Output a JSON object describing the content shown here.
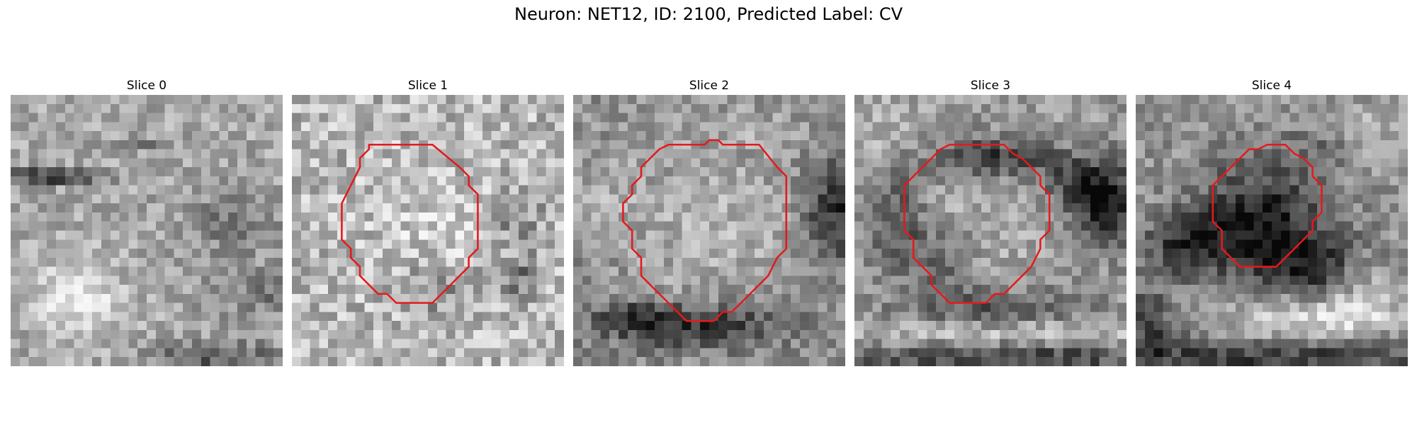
{
  "title": "Neuron: NET12, ID: 2100, Predicted Label: CV",
  "colors": {
    "contour": "#e41a1c",
    "background": "#ffffff"
  },
  "panels": [
    {
      "title": "Slice 0",
      "has_contour": false,
      "seed": 11,
      "base": 0.66,
      "blob_gain": 0.35,
      "noise": 0.3,
      "features": [
        [
          4,
          8.5,
          4,
          0.55,
          -0.55
        ],
        [
          14,
          5,
          2.2,
          0.4,
          -0.25
        ],
        [
          7,
          22,
          3.2,
          3.2,
          0.25
        ],
        [
          24,
          13.5,
          3.5,
          2.5,
          -0.18
        ],
        [
          28,
          21.5,
          4,
          2,
          -0.2
        ],
        [
          22,
          28.5,
          5,
          1.2,
          -0.32
        ]
      ],
      "contour": []
    },
    {
      "title": "Slice 1",
      "has_contour": true,
      "seed": 23,
      "base": 0.72,
      "blob_gain": 0.3,
      "noise": 0.4,
      "features": [
        [
          15,
          14,
          5,
          5,
          0.08
        ],
        [
          24,
          13,
          2,
          2,
          -0.2
        ],
        [
          16,
          21,
          3,
          2,
          -0.18
        ],
        [
          24.5,
          19.5,
          1.5,
          1.5,
          -0.3
        ]
      ],
      "contour": [
        [
          8.5,
          5.5
        ],
        [
          15.5,
          5.5
        ],
        [
          18.5,
          8.0
        ],
        [
          19.5,
          9.0
        ],
        [
          19.5,
          10.0
        ],
        [
          20.5,
          11.0
        ],
        [
          20.5,
          17.0
        ],
        [
          19.5,
          18.0
        ],
        [
          19.5,
          19.0
        ],
        [
          18.5,
          20.0
        ],
        [
          17.5,
          21.0
        ],
        [
          16.5,
          22.0
        ],
        [
          15.5,
          23.0
        ],
        [
          11.5,
          23.0
        ],
        [
          10.5,
          22.0
        ],
        [
          9.5,
          22.0
        ],
        [
          8.5,
          21.0
        ],
        [
          7.5,
          20.0
        ],
        [
          7.5,
          19.0
        ],
        [
          6.5,
          18.0
        ],
        [
          6.5,
          17.0
        ],
        [
          5.5,
          16.0
        ],
        [
          5.5,
          12.0
        ],
        [
          6.5,
          10.0
        ],
        [
          7.5,
          8.0
        ],
        [
          7.5,
          7.0
        ],
        [
          8.5,
          6.0
        ]
      ]
    },
    {
      "title": "Slice 2",
      "has_contour": true,
      "seed": 37,
      "base": 0.56,
      "blob_gain": 0.35,
      "noise": 0.3,
      "features": [
        [
          15,
          14,
          7,
          7,
          0.15
        ],
        [
          28.5,
          12.5,
          2.5,
          4,
          -0.4
        ],
        [
          13,
          25,
          7,
          1.8,
          -0.4
        ],
        [
          6,
          24,
          2.5,
          1.2,
          -0.2
        ],
        [
          3,
          10,
          2.5,
          3,
          0.1
        ],
        [
          19,
          3,
          6,
          1.3,
          0.08
        ]
      ],
      "contour": [
        [
          10.5,
          5.5
        ],
        [
          14.5,
          5.5
        ],
        [
          15.0,
          5.0
        ],
        [
          16.0,
          5.0
        ],
        [
          16.5,
          5.5
        ],
        [
          20.5,
          5.5
        ],
        [
          22.5,
          8.0
        ],
        [
          23.5,
          9.0
        ],
        [
          23.5,
          17.0
        ],
        [
          22.5,
          18.0
        ],
        [
          21.5,
          20.0
        ],
        [
          20.5,
          21.0
        ],
        [
          19.5,
          22.0
        ],
        [
          18.5,
          23.0
        ],
        [
          17.5,
          24.0
        ],
        [
          16.5,
          24.0
        ],
        [
          15.5,
          25.0
        ],
        [
          12.5,
          25.0
        ],
        [
          11.5,
          24.0
        ],
        [
          10.5,
          23.0
        ],
        [
          9.5,
          22.0
        ],
        [
          8.5,
          21.0
        ],
        [
          7.5,
          20.0
        ],
        [
          7.5,
          18.0
        ],
        [
          6.5,
          17.0
        ],
        [
          6.5,
          15.0
        ],
        [
          5.5,
          14.0
        ],
        [
          5.5,
          12.0
        ],
        [
          6.5,
          11.0
        ],
        [
          6.5,
          10.0
        ],
        [
          7.5,
          9.0
        ],
        [
          7.5,
          8.0
        ],
        [
          8.5,
          7.0
        ],
        [
          9.5,
          6.0
        ]
      ]
    },
    {
      "title": "Slice 3",
      "has_contour": true,
      "seed": 53,
      "base": 0.6,
      "blob_gain": 0.4,
      "noise": 0.3,
      "features": [
        [
          15,
          14,
          5,
          5,
          0.08
        ],
        [
          15,
          6.5,
          5,
          1.6,
          -0.38
        ],
        [
          24,
          9.5,
          2.5,
          2,
          -0.32
        ],
        [
          27.5,
          11.5,
          2.5,
          3,
          -0.48
        ],
        [
          4,
          13.5,
          2,
          3.5,
          -0.3
        ],
        [
          9,
          18,
          2.5,
          2.5,
          -0.25
        ],
        [
          15,
          23,
          7,
          1.5,
          -0.25
        ],
        [
          16,
          26,
          16,
          1,
          0.2
        ],
        [
          15,
          28.5,
          16,
          1.3,
          -0.35
        ],
        [
          2,
          3,
          4,
          3,
          0.1
        ]
      ],
      "contour": [
        [
          10.5,
          5.5
        ],
        [
          16.5,
          5.5
        ],
        [
          17.5,
          6.5
        ],
        [
          18.5,
          7.0
        ],
        [
          19.5,
          8.0
        ],
        [
          20.5,
          9.0
        ],
        [
          20.5,
          10.0
        ],
        [
          21.5,
          11.0
        ],
        [
          21.5,
          15.0
        ],
        [
          20.5,
          16.0
        ],
        [
          20.5,
          17.0
        ],
        [
          19.5,
          19.0
        ],
        [
          18.5,
          20.0
        ],
        [
          17.5,
          21.0
        ],
        [
          16.5,
          22.0
        ],
        [
          15.5,
          22.0
        ],
        [
          14.5,
          23.0
        ],
        [
          10.5,
          23.0
        ],
        [
          9.5,
          22.0
        ],
        [
          8.5,
          21.0
        ],
        [
          8.5,
          20.0
        ],
        [
          7.5,
          19.0
        ],
        [
          6.5,
          18.0
        ],
        [
          6.5,
          16.0
        ],
        [
          5.5,
          15.0
        ],
        [
          5.5,
          10.0
        ],
        [
          6.5,
          9.0
        ],
        [
          7.5,
          8.0
        ],
        [
          8.5,
          7.0
        ],
        [
          9.5,
          6.0
        ]
      ]
    },
    {
      "title": "Slice 4",
      "has_contour": true,
      "seed": 71,
      "base": 0.58,
      "blob_gain": 0.5,
      "noise": 0.3,
      "features": [
        [
          13,
          14,
          5,
          4.5,
          -0.5
        ],
        [
          5,
          16,
          3,
          2.2,
          -0.35
        ],
        [
          20.5,
          19,
          4,
          3,
          -0.35
        ],
        [
          18,
          24,
          6,
          1.8,
          0.35
        ],
        [
          24,
          21,
          3,
          3,
          0.25
        ],
        [
          15,
          28.5,
          16,
          1.5,
          -0.35
        ],
        [
          1,
          25,
          2,
          3,
          -0.3
        ],
        [
          26,
          4,
          3,
          3,
          0.12
        ],
        [
          20,
          6,
          4,
          2,
          -0.12
        ]
      ],
      "contour": [
        [
          14.5,
          5.5
        ],
        [
          16.5,
          5.5
        ],
        [
          17.5,
          6.5
        ],
        [
          18.5,
          7.0
        ],
        [
          19.5,
          8.0
        ],
        [
          19.5,
          9.0
        ],
        [
          20.5,
          10.0
        ],
        [
          20.5,
          13.0
        ],
        [
          19.5,
          14.0
        ],
        [
          19.5,
          15.0
        ],
        [
          18.5,
          16.0
        ],
        [
          17.5,
          17.0
        ],
        [
          16.5,
          18.0
        ],
        [
          15.5,
          19.0
        ],
        [
          11.5,
          19.0
        ],
        [
          10.5,
          18.0
        ],
        [
          9.5,
          17.0
        ],
        [
          9.5,
          15.0
        ],
        [
          8.5,
          14.0
        ],
        [
          8.5,
          10.0
        ],
        [
          9.5,
          9.0
        ],
        [
          10.5,
          8.0
        ],
        [
          11.5,
          7.0
        ],
        [
          12.5,
          6.0
        ],
        [
          13.5,
          6.0
        ]
      ]
    }
  ]
}
